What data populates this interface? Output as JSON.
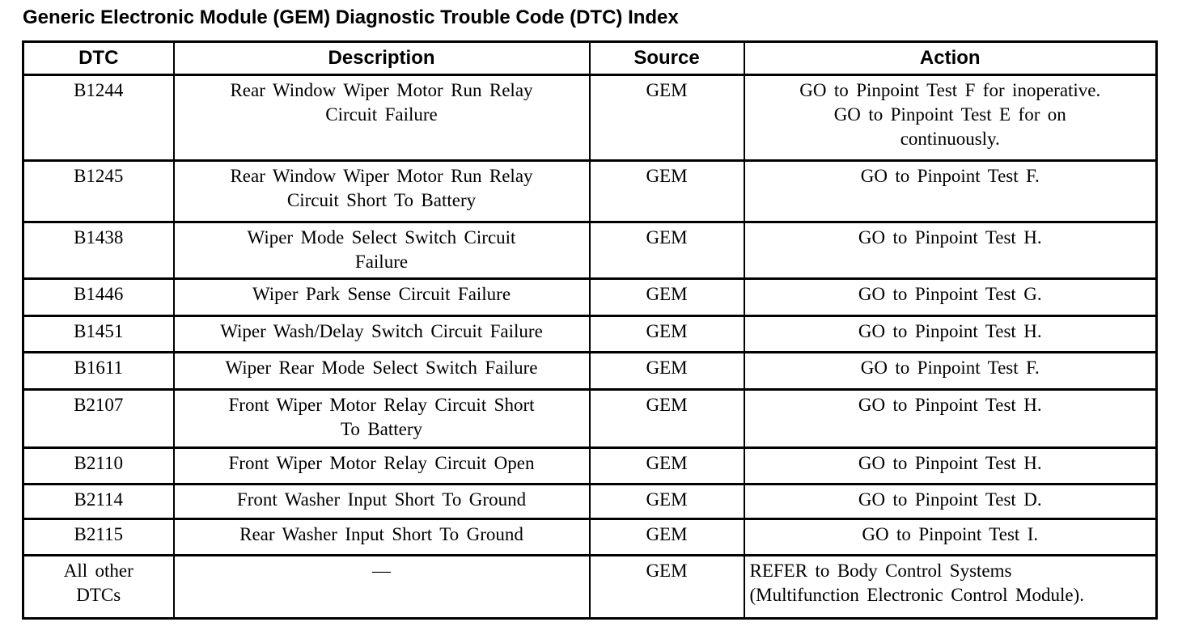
{
  "title": "Generic Electronic Module (GEM) Diagnostic Trouble Code (DTC) Index",
  "table": {
    "headers": [
      "DTC",
      "Description",
      "Source",
      "Action"
    ],
    "rows": [
      {
        "dtc": "B1244",
        "description": "Rear Window Wiper Motor Run Relay\nCircuit Failure",
        "source": "GEM",
        "action": "GO to Pinpoint Test F for inoperative.\nGO to Pinpoint Test E for on\ncontinuously."
      },
      {
        "dtc": "B1245",
        "description": "Rear Window Wiper Motor Run Relay\nCircuit Short To Battery",
        "source": "GEM",
        "action": "GO to Pinpoint Test F."
      },
      {
        "dtc": "B1438",
        "description": "Wiper Mode Select Switch Circuit\nFailure",
        "source": "GEM",
        "action": "GO to Pinpoint Test H."
      },
      {
        "dtc": "B1446",
        "description": "Wiper Park Sense Circuit Failure",
        "source": "GEM",
        "action": "GO to Pinpoint Test G."
      },
      {
        "dtc": "B1451",
        "description": "Wiper Wash/Delay Switch Circuit Failure",
        "source": "GEM",
        "action": "GO to Pinpoint Test H."
      },
      {
        "dtc": "B1611",
        "description": "Wiper Rear Mode Select Switch Failure",
        "source": "GEM",
        "action": "GO to Pinpoint Test F."
      },
      {
        "dtc": "B2107",
        "description": "Front Wiper Motor Relay Circuit Short\nTo Battery",
        "source": "GEM",
        "action": "GO to Pinpoint Test H."
      },
      {
        "dtc": "B2110",
        "description": "Front Wiper Motor Relay Circuit Open",
        "source": "GEM",
        "action": "GO to Pinpoint Test H."
      },
      {
        "dtc": "B2114",
        "description": "Front Washer Input Short To Ground",
        "source": "GEM",
        "action": "GO to Pinpoint Test D."
      },
      {
        "dtc": "B2115",
        "description": "Rear Washer Input Short To Ground",
        "source": "GEM",
        "action": "GO to Pinpoint Test I."
      },
      {
        "dtc": "All other\nDTCs",
        "description": "—",
        "source": "GEM",
        "action": "REFER to Body Control Systems\n(Multifunction Electronic Control Module)."
      }
    ]
  }
}
